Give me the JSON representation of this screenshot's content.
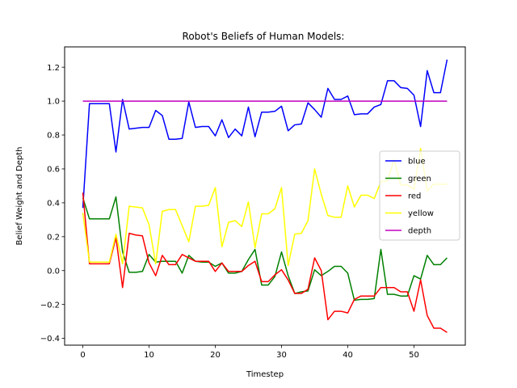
{
  "chart_data": {
    "type": "line",
    "title": "Robot's Beliefs of Human Models:",
    "xlabel": "Timestep",
    "ylabel": "Belief Weight and Depth",
    "xlim": [
      -2.75,
      57.75
    ],
    "ylim": [
      -0.44,
      1.32
    ],
    "xticks": [
      0,
      10,
      20,
      30,
      40,
      50
    ],
    "yticks": [
      -0.4,
      -0.2,
      0.0,
      0.2,
      0.4,
      0.6,
      0.8,
      1.0,
      1.2
    ],
    "ytick_labels": [
      "−0.4",
      "−0.2",
      "0.0",
      "0.2",
      "0.4",
      "0.6",
      "0.8",
      "1.0",
      "1.2"
    ],
    "grid": false,
    "legend": "center-right",
    "series": [
      {
        "name": "blue",
        "color": "#0000ff",
        "values": [
          0.37,
          0.985,
          0.985,
          0.985,
          0.985,
          0.7,
          1.01,
          0.835,
          0.84,
          0.845,
          0.845,
          0.945,
          0.915,
          0.775,
          0.775,
          0.78,
          0.995,
          0.845,
          0.85,
          0.85,
          0.795,
          0.89,
          0.785,
          0.835,
          0.795,
          0.965,
          0.79,
          0.935,
          0.935,
          0.94,
          0.97,
          0.825,
          0.86,
          0.865,
          0.99,
          0.95,
          0.905,
          1.075,
          1.01,
          1.01,
          1.03,
          0.92,
          0.925,
          0.925,
          0.965,
          0.98,
          1.12,
          1.12,
          1.08,
          1.075,
          1.035,
          0.85,
          1.18,
          1.05,
          1.05,
          1.245
        ]
      },
      {
        "name": "green",
        "color": "#008000",
        "values": [
          0.43,
          0.305,
          0.305,
          0.305,
          0.305,
          0.435,
          0.11,
          -0.01,
          -0.01,
          -0.005,
          0.095,
          0.05,
          0.055,
          0.055,
          0.055,
          -0.015,
          0.09,
          0.055,
          0.05,
          0.05,
          0.025,
          0.045,
          -0.015,
          -0.015,
          -0.005,
          0.065,
          0.125,
          -0.085,
          -0.085,
          -0.035,
          0.11,
          -0.03,
          -0.135,
          -0.125,
          -0.12,
          0.005,
          -0.03,
          -0.005,
          0.025,
          0.025,
          -0.015,
          -0.175,
          -0.17,
          -0.17,
          -0.165,
          0.125,
          -0.14,
          -0.14,
          -0.15,
          -0.15,
          -0.03,
          -0.05,
          0.09,
          0.035,
          0.035,
          0.075
        ]
      },
      {
        "name": "red",
        "color": "#ff0000",
        "values": [
          0.46,
          0.04,
          0.04,
          0.04,
          0.04,
          0.195,
          -0.1,
          0.22,
          0.21,
          0.205,
          0.045,
          -0.03,
          0.09,
          0.035,
          0.035,
          0.095,
          0.075,
          0.055,
          0.055,
          0.055,
          -0.005,
          0.045,
          -0.005,
          -0.005,
          -0.005,
          0.03,
          0.055,
          -0.065,
          -0.065,
          -0.025,
          0.005,
          -0.055,
          -0.135,
          -0.135,
          -0.11,
          0.075,
          0.0,
          -0.29,
          -0.24,
          -0.24,
          -0.25,
          -0.17,
          -0.15,
          -0.15,
          -0.15,
          -0.1,
          -0.1,
          -0.1,
          -0.125,
          -0.125,
          -0.24,
          -0.055,
          -0.265,
          -0.34,
          -0.34,
          -0.365
        ]
      },
      {
        "name": "yellow",
        "color": "#ffff00",
        "values": [
          0.34,
          0.05,
          0.05,
          0.05,
          0.05,
          0.215,
          0.04,
          0.38,
          0.375,
          0.37,
          0.27,
          0.04,
          0.35,
          0.36,
          0.36,
          0.265,
          0.17,
          0.38,
          0.38,
          0.385,
          0.49,
          0.14,
          0.285,
          0.295,
          0.26,
          0.405,
          0.135,
          0.335,
          0.335,
          0.365,
          0.49,
          0.03,
          0.215,
          0.22,
          0.295,
          0.6,
          0.45,
          0.325,
          0.315,
          0.315,
          0.5,
          0.375,
          0.445,
          0.445,
          0.425,
          0.525,
          0.53,
          0.655,
          0.505,
          0.505,
          0.48,
          0.72,
          0.47,
          0.51,
          0.51,
          0.51
        ]
      },
      {
        "name": "depth",
        "color": "#bf00bf",
        "values": [
          1.0,
          1.0,
          1.0,
          1.0,
          1.0,
          1.0,
          1.0,
          1.0,
          1.0,
          1.0,
          1.0,
          1.0,
          1.0,
          1.0,
          1.0,
          1.0,
          1.0,
          1.0,
          1.0,
          1.0,
          1.0,
          1.0,
          1.0,
          1.0,
          1.0,
          1.0,
          1.0,
          1.0,
          1.0,
          1.0,
          1.0,
          1.0,
          1.0,
          1.0,
          1.0,
          1.0,
          1.0,
          1.0,
          1.0,
          1.0,
          1.0,
          1.0,
          1.0,
          1.0,
          1.0,
          1.0,
          1.0,
          1.0,
          1.0,
          1.0,
          1.0,
          1.0,
          1.0,
          1.0,
          1.0,
          1.0
        ]
      }
    ]
  }
}
